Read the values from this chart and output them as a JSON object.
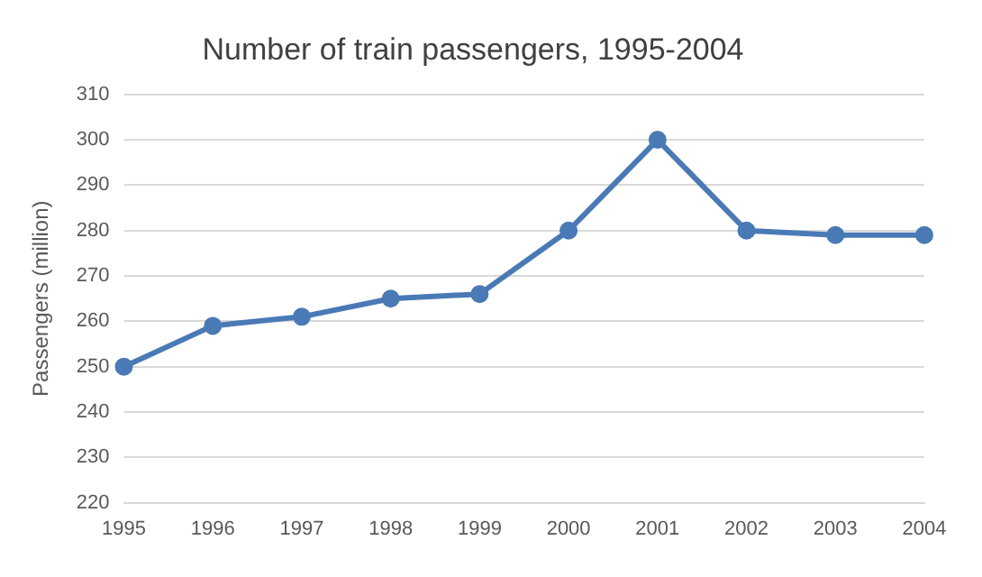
{
  "chart_data": {
    "type": "line",
    "title": "Number of train passengers, 1995-2004",
    "ylabel": "Passengers (million)",
    "categories": [
      "1995",
      "1996",
      "1997",
      "1998",
      "1999",
      "2000",
      "2001",
      "2002",
      "2003",
      "2004"
    ],
    "series": [
      {
        "color": "#4a7ab5",
        "values": [
          250,
          259,
          261,
          265,
          266,
          280,
          300,
          280,
          279,
          279
        ]
      }
    ],
    "ylim": [
      220,
      310
    ],
    "yticks": [
      220,
      230,
      240,
      250,
      260,
      270,
      280,
      290,
      300,
      310
    ],
    "grid": "y",
    "legend": false,
    "marker": "circle",
    "line_style": "solid"
  }
}
